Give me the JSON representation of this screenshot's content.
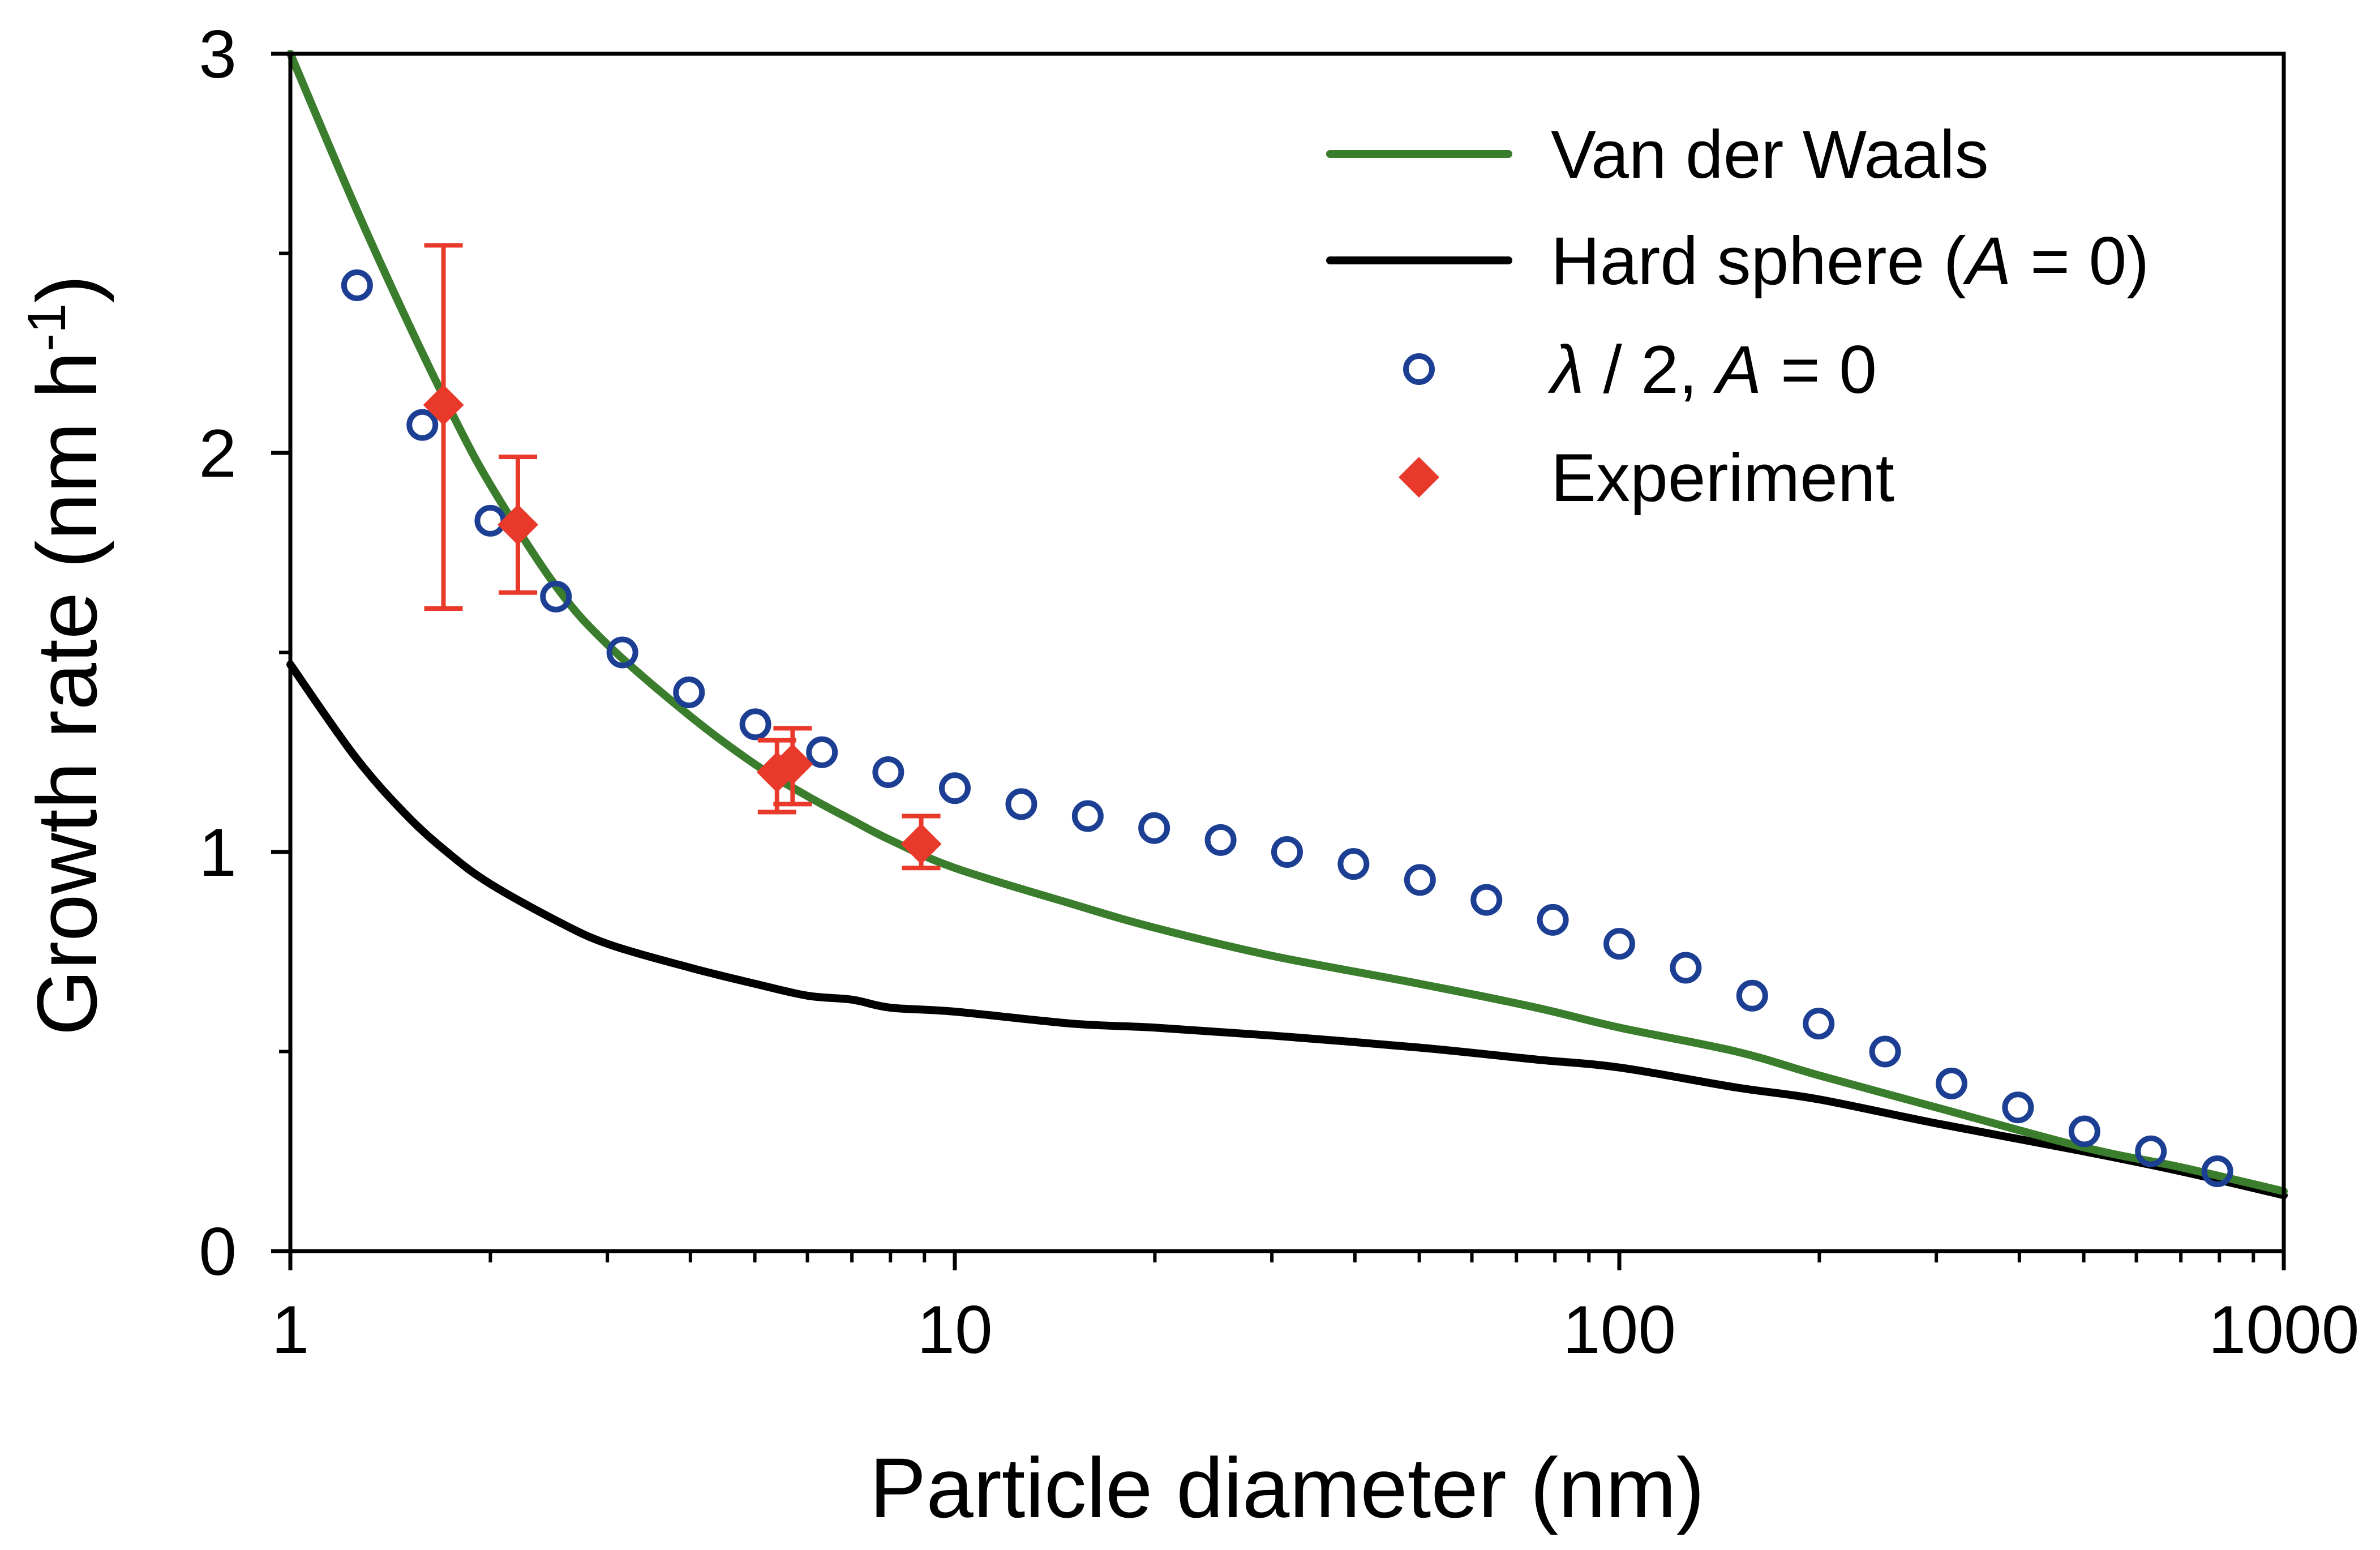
{
  "chart_data": {
    "type": "scatter",
    "title": "",
    "xlabel": "Particle diameter (nm)",
    "ylabel": {
      "main": "Growth rate (nm h",
      "superscript": "-1",
      "close": ")"
    },
    "x_scale": "log",
    "xlim": [
      1,
      1000
    ],
    "ylim": [
      0,
      3
    ],
    "grid": false,
    "legend_position": "top-right",
    "x_major_ticks": [
      {
        "value": 1,
        "label": "1"
      },
      {
        "value": 10,
        "label": "10"
      },
      {
        "value": 100,
        "label": "100"
      },
      {
        "value": 1000,
        "label": "1000"
      }
    ],
    "y_major_ticks": [
      {
        "value": 0,
        "label": "0"
      },
      {
        "value": 1,
        "label": "1"
      },
      {
        "value": 2,
        "label": "2"
      },
      {
        "value": 3,
        "label": "3"
      }
    ],
    "y_minor_ticks": [
      0.5,
      1.5,
      2.5
    ],
    "series": [
      {
        "name": "Van der Waals",
        "kind": "line",
        "color": "#3a7d2c",
        "legend_parts": [
          {
            "text": "Van der Waals",
            "italic": false
          }
        ],
        "x": [
          1,
          1.25,
          1.5,
          1.75,
          2,
          2.5,
          3,
          4,
          5,
          6,
          7,
          8,
          10,
          15,
          20,
          30,
          50,
          75,
          100,
          150,
          200,
          300,
          500,
          700,
          1000
        ],
        "y": [
          3.0,
          2.62,
          2.33,
          2.1,
          1.92,
          1.67,
          1.52,
          1.34,
          1.22,
          1.14,
          1.08,
          1.03,
          0.96,
          0.87,
          0.81,
          0.74,
          0.67,
          0.61,
          0.56,
          0.5,
          0.44,
          0.36,
          0.26,
          0.21,
          0.15
        ]
      },
      {
        "name": "Hard sphere (A = 0)",
        "kind": "line",
        "color": "#000000",
        "legend_parts": [
          {
            "text": "Hard sphere (",
            "italic": false
          },
          {
            "text": "A",
            "italic": true
          },
          {
            "text": " = 0)",
            "italic": false
          }
        ],
        "x": [
          1,
          1.25,
          1.5,
          1.75,
          2,
          2.5,
          3,
          4,
          5,
          6,
          7,
          8,
          10,
          15,
          20,
          30,
          50,
          75,
          100,
          150,
          200,
          300,
          500,
          700,
          1000
        ],
        "y": [
          1.47,
          1.24,
          1.09,
          0.99,
          0.92,
          0.83,
          0.77,
          0.71,
          0.67,
          0.64,
          0.63,
          0.61,
          0.6,
          0.57,
          0.56,
          0.54,
          0.51,
          0.48,
          0.46,
          0.41,
          0.38,
          0.32,
          0.25,
          0.2,
          0.14
        ]
      },
      {
        "name": "λ / 2, A = 0",
        "kind": "scatter",
        "marker": "open-circle",
        "color": "#1c3f94",
        "legend_parts": [
          {
            "text": "λ",
            "italic": true
          },
          {
            "text": " / 2, ",
            "italic": false
          },
          {
            "text": "A",
            "italic": true
          },
          {
            "text": " = 0",
            "italic": false
          }
        ],
        "x": [
          1.26,
          1.58,
          2.0,
          2.51,
          3.16,
          3.98,
          5.01,
          6.31,
          7.94,
          10.0,
          12.59,
          15.85,
          19.95,
          25.12,
          31.62,
          39.81,
          50.12,
          63.1,
          79.43,
          100.0,
          125.89,
          158.49,
          199.53,
          251.19,
          316.23,
          398.11,
          501.19,
          630.96,
          794.33
        ],
        "y": [
          2.42,
          2.07,
          1.83,
          1.64,
          1.5,
          1.4,
          1.32,
          1.25,
          1.2,
          1.16,
          1.12,
          1.09,
          1.06,
          1.03,
          1.0,
          0.97,
          0.93,
          0.88,
          0.83,
          0.77,
          0.71,
          0.64,
          0.57,
          0.5,
          0.42,
          0.36,
          0.3,
          0.25,
          0.2
        ]
      },
      {
        "name": "Experiment",
        "kind": "scatter",
        "marker": "filled-diamond",
        "color": "#e8392b",
        "legend_parts": [
          {
            "text": "Experiment",
            "italic": false
          }
        ],
        "x": [
          1.7,
          2.2,
          5.4,
          5.7,
          8.9
        ],
        "y": [
          2.12,
          1.82,
          1.2,
          1.22,
          1.02
        ],
        "y_err_low": [
          1.61,
          1.65,
          1.1,
          1.12,
          0.96
        ],
        "y_err_high": [
          2.52,
          1.99,
          1.28,
          1.31,
          1.09
        ]
      }
    ]
  }
}
